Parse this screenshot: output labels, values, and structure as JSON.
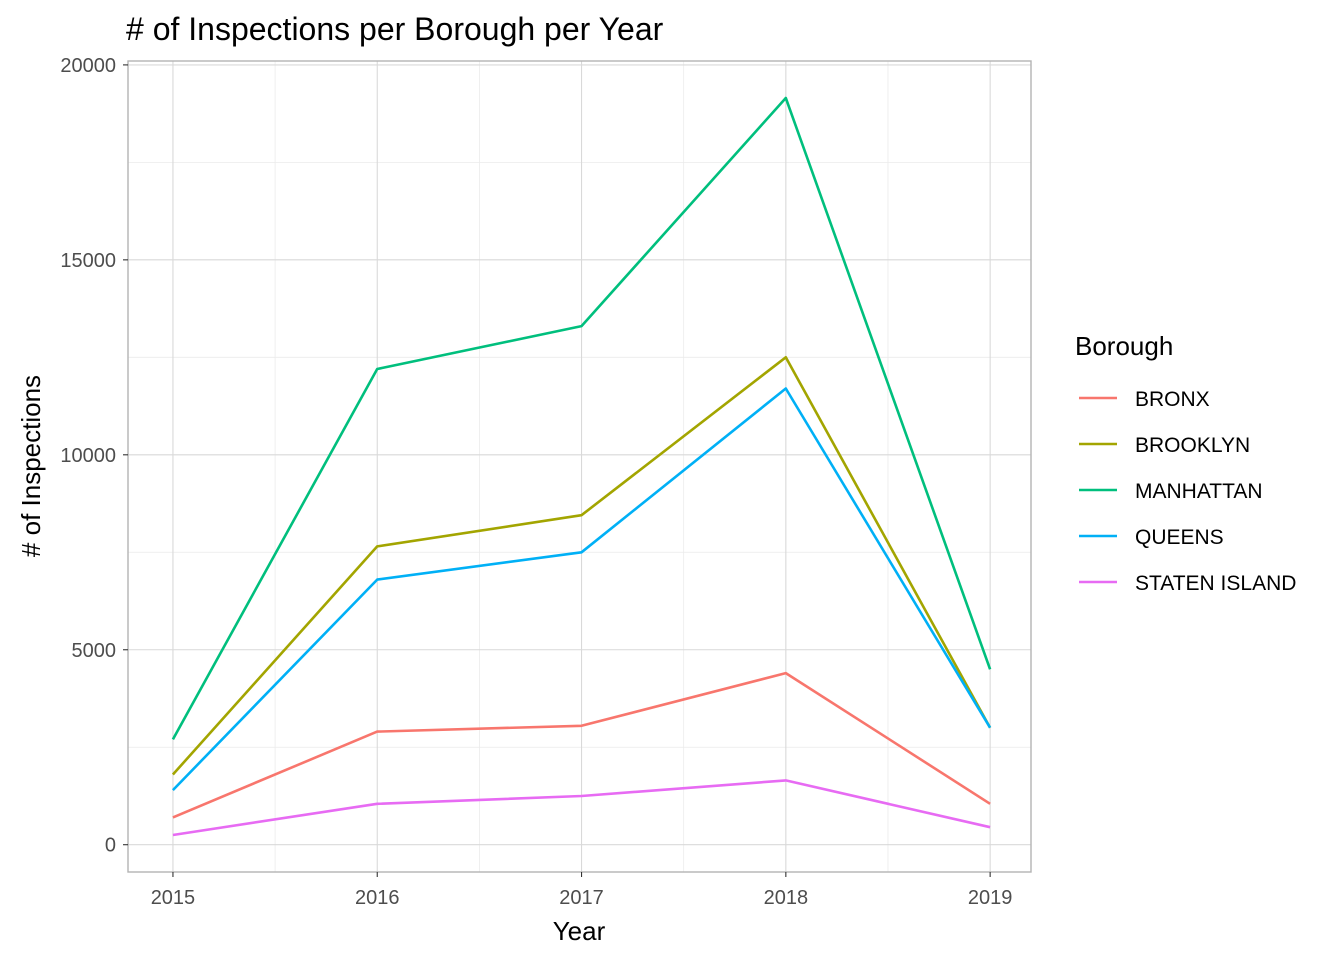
{
  "chart_data": {
    "type": "line",
    "title": "# of Inspections per Borough per Year",
    "xlabel": "Year",
    "ylabel": "# of Inspections",
    "x": [
      2015,
      2016,
      2017,
      2018,
      2019
    ],
    "x_ticks": [
      "2015",
      "2016",
      "2017",
      "2018",
      "2019"
    ],
    "y_ticks": [
      "0",
      "5000",
      "10000",
      "15000",
      "20000"
    ],
    "xlim": [
      2014.78,
      2019.2
    ],
    "ylim": [
      -700,
      20100
    ],
    "grid": true,
    "legend": {
      "title": "Borough",
      "placement": "right"
    },
    "series": [
      {
        "name": "BRONX",
        "color": "#F8766D",
        "values": [
          700,
          2900,
          3050,
          4400,
          1050
        ]
      },
      {
        "name": "BROOKLYN",
        "color": "#A3A500",
        "values": [
          1800,
          7650,
          8450,
          12500,
          3000
        ]
      },
      {
        "name": "MANHATTAN",
        "color": "#00BF7D",
        "values": [
          2700,
          12200,
          13300,
          19150,
          4500
        ]
      },
      {
        "name": "QUEENS",
        "color": "#00B0F6",
        "values": [
          1400,
          6800,
          7500,
          11700,
          3000
        ]
      },
      {
        "name": "STATEN ISLAND",
        "color": "#E76BF3",
        "values": [
          250,
          1050,
          1250,
          1650,
          450
        ]
      }
    ]
  }
}
